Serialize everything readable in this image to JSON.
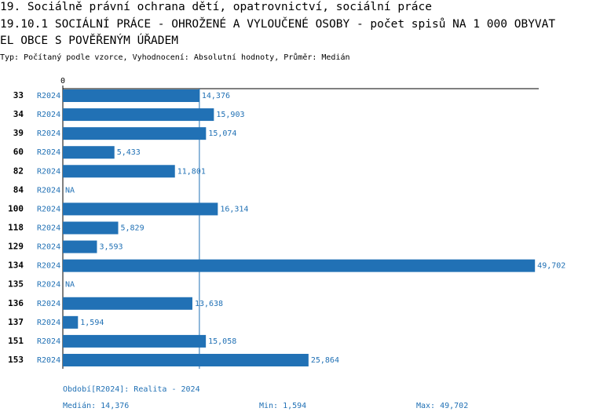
{
  "chart_data": {
    "type": "bar",
    "orientation": "horizontal",
    "titles": [
      "19. Sociálně právní ochrana dětí, opatrovnictví, sociální práce",
      "19.10.1 SOCIÁLNÍ PRÁCE - OHROŽENÉ A VYLOUČENÉ OSOBY - počet spisů NA 1 000 OBYVAT",
      "EL OBCE S POVĚŘENÝM ÚŘADEM"
    ],
    "subtitle": "Typ: Počítaný podle vzorce, Vyhodnocení: Absolutní hodnoty, Průměr: Medián",
    "categories": [
      "33",
      "34",
      "39",
      "60",
      "82",
      "84",
      "100",
      "118",
      "129",
      "134",
      "135",
      "136",
      "137",
      "151",
      "153"
    ],
    "series": [
      {
        "name": "R2024",
        "color": "#2171b5",
        "values": [
          14376,
          15903,
          15074,
          5433,
          11801,
          null,
          16314,
          5829,
          3593,
          49702,
          null,
          13638,
          1594,
          15058,
          25864
        ],
        "value_labels": [
          "14,376",
          "15,903",
          "15,074",
          "5,433",
          "11,801",
          "NA",
          "16,314",
          "5,829",
          "3,593",
          "49,702",
          "NA",
          "13,638",
          "1,594",
          "15,058",
          "25,864"
        ]
      }
    ],
    "xlim": [
      0,
      50100
    ],
    "xticks": [
      0
    ],
    "period_label": "Období[R2024]: Realita - 2024",
    "stats": [
      {
        "label": "Medián:",
        "value": 14376,
        "value_label": "14,376"
      },
      {
        "label": "Min:",
        "value": 1594,
        "value_label": "1,594"
      },
      {
        "label": "Max:",
        "value": 49702,
        "value_label": "49,702"
      }
    ]
  }
}
